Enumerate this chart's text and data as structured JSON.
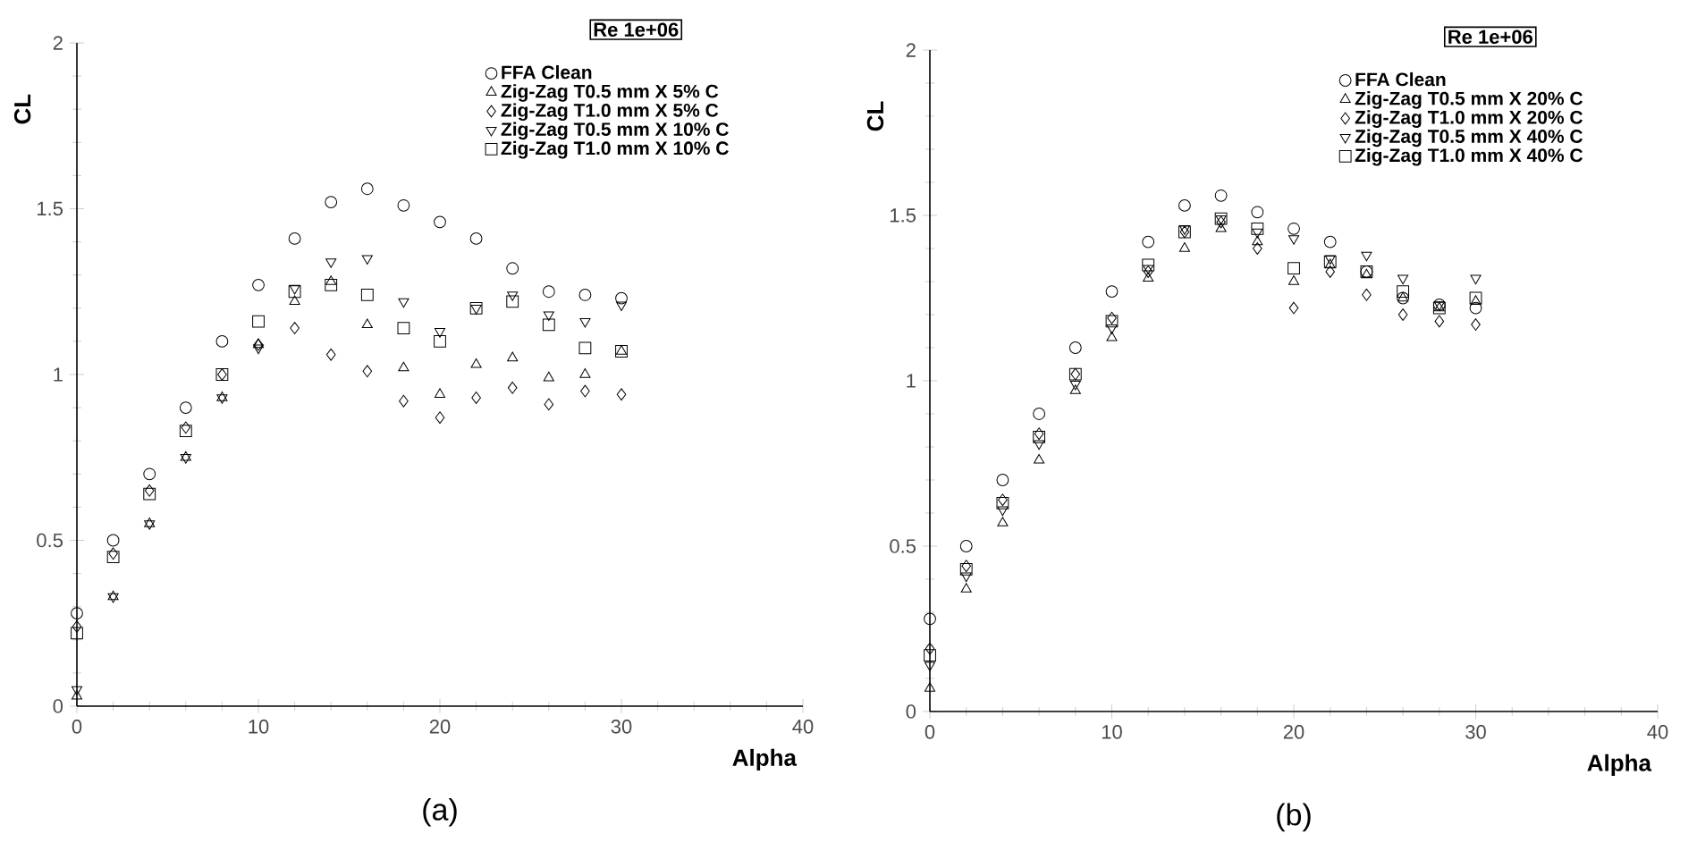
{
  "chart_data": [
    {
      "type": "scatter",
      "xlabel": "Alpha",
      "ylabel": "CL",
      "legend": "top right",
      "legend_title": "Re 1e+06",
      "annotations": [
        "(a)"
      ],
      "grid": false,
      "xlim": [
        0,
        40
      ],
      "ylim": [
        0,
        2
      ],
      "xticks": [
        0,
        10,
        20,
        30,
        40
      ],
      "yticks": [
        0,
        0.5,
        1,
        1.5,
        2
      ],
      "x": [
        0,
        2,
        4,
        6,
        8,
        10,
        12,
        14,
        16,
        18,
        20,
        22,
        24,
        26,
        28,
        30
      ],
      "series": [
        {
          "name": "FFA Clean",
          "color": "#000000",
          "marker": "circle",
          "values": [
            0.28,
            0.5,
            0.7,
            0.9,
            1.1,
            1.27,
            1.41,
            1.52,
            1.56,
            1.51,
            1.46,
            1.41,
            1.32,
            1.25,
            1.24,
            1.23
          ]
        },
        {
          "name": "Zig-Zag  T0.5 mm  X 5% C",
          "color": "#000000",
          "marker": "triangle",
          "values": [
            0.03,
            0.33,
            0.55,
            0.75,
            0.93,
            1.09,
            1.22,
            1.28,
            1.15,
            1.02,
            0.94,
            1.03,
            1.05,
            0.99,
            1.0,
            1.07
          ]
        },
        {
          "name": "Zig-Zag  T1.0  mm X   5% C",
          "color": "#000000",
          "marker": "diamond",
          "values": [
            0.24,
            0.46,
            0.65,
            0.84,
            1.0,
            1.09,
            1.14,
            1.06,
            1.01,
            0.92,
            0.87,
            0.93,
            0.96,
            0.91,
            0.95,
            0.94
          ]
        },
        {
          "name": "Zig-Zag  T0.5 mm  X 10% C",
          "color": "#000000",
          "marker": "triangle down",
          "values": [
            0.05,
            0.33,
            0.55,
            0.75,
            0.93,
            1.08,
            1.26,
            1.34,
            1.35,
            1.22,
            1.13,
            1.2,
            1.24,
            1.18,
            1.16,
            1.21
          ]
        },
        {
          "name": "Zig-Zag  T1.0  mm  X 10% C",
          "color": "#000000",
          "marker": "square",
          "values": [
            0.22,
            0.45,
            0.64,
            0.83,
            1.0,
            1.16,
            1.25,
            1.27,
            1.24,
            1.14,
            1.1,
            1.2,
            1.22,
            1.15,
            1.08,
            1.07
          ]
        }
      ]
    },
    {
      "type": "scatter",
      "xlabel": "Alpha",
      "ylabel": "CL",
      "legend": "top right",
      "legend_title": "Re 1e+06",
      "annotations": [
        "(b)"
      ],
      "grid": false,
      "xlim": [
        0,
        40
      ],
      "ylim": [
        0,
        2
      ],
      "xticks": [
        0,
        10,
        20,
        30,
        40
      ],
      "yticks": [
        0,
        0.5,
        1,
        1.5,
        2
      ],
      "x": [
        0,
        2,
        4,
        6,
        8,
        10,
        12,
        14,
        16,
        18,
        20,
        22,
        24,
        26,
        28,
        30
      ],
      "series": [
        {
          "name": "FFA Clean",
          "color": "#000000",
          "marker": "circle",
          "values": [
            0.28,
            0.5,
            0.7,
            0.9,
            1.1,
            1.27,
            1.42,
            1.53,
            1.56,
            1.51,
            1.46,
            1.42,
            1.33,
            1.25,
            1.23,
            1.22
          ]
        },
        {
          "name": "Zig-Zag  T0.5 mm X 20% C",
          "color": "#000000",
          "marker": "triangle",
          "values": [
            0.07,
            0.37,
            0.57,
            0.76,
            0.97,
            1.13,
            1.31,
            1.4,
            1.46,
            1.42,
            1.3,
            1.35,
            1.32,
            1.25,
            1.22,
            1.24
          ]
        },
        {
          "name": "Zig-Zag  T1.0 mm X 20% C",
          "color": "#000000",
          "marker": "diamond",
          "values": [
            0.19,
            0.44,
            0.64,
            0.84,
            1.02,
            1.19,
            1.33,
            1.45,
            1.48,
            1.4,
            1.22,
            1.33,
            1.26,
            1.2,
            1.18,
            1.17
          ]
        },
        {
          "name": "Zig-Zag  T0.5 mm X 40% C",
          "color": "#000000",
          "marker": "triangle down",
          "values": [
            0.14,
            0.41,
            0.61,
            0.81,
            0.99,
            1.16,
            1.34,
            1.46,
            1.49,
            1.45,
            1.43,
            1.37,
            1.38,
            1.31,
            1.23,
            1.31
          ]
        },
        {
          "name": "Zig-Zag  T1.0  mm X 40% C",
          "color": "#000000",
          "marker": "square",
          "values": [
            0.17,
            0.43,
            0.63,
            0.83,
            1.02,
            1.18,
            1.35,
            1.45,
            1.49,
            1.46,
            1.34,
            1.36,
            1.33,
            1.27,
            1.22,
            1.25
          ]
        }
      ]
    }
  ]
}
